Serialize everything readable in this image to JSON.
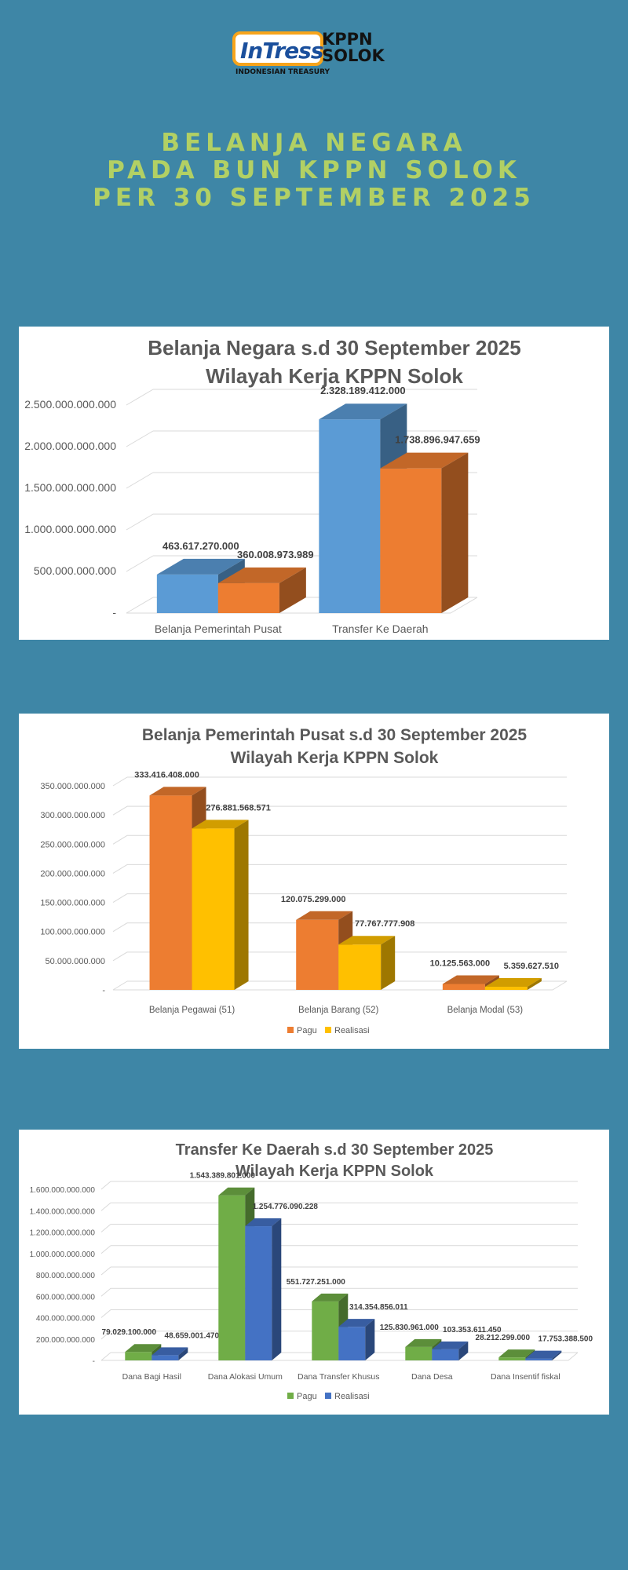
{
  "logo": {
    "name": "InTress",
    "org_line1": "KPPN",
    "org_line2": "SOLOK",
    "subtitle": "INDONESIAN TREASURY"
  },
  "header": {
    "line1": "BELANJA NEGARA",
    "line2": "PADA BUN KPPN SOLOK",
    "line3": "PER 30 SEPTEMBER 2025"
  },
  "colors": {
    "background": "#3e86a6",
    "title": "#b2d064"
  },
  "chart_data": [
    {
      "type": "bar",
      "title_line1": "Belanja Negara s.d 30 September 2025",
      "title_line2": "Wilayah Kerja KPPN Solok",
      "categories": [
        "Belanja Pemerintah Pusat",
        "Transfer Ke Daerah"
      ],
      "series": [
        {
          "values": [
            463617270000,
            2328189412000
          ],
          "labels": [
            "463.617.270.000",
            "2.328.189.412.000"
          ],
          "color": "#5b9bd5"
        },
        {
          "values": [
            360008973989,
            1738896947659
          ],
          "labels": [
            "360.008.973.989",
            "1.738.896.947.659"
          ],
          "color": "#ed7d31"
        }
      ],
      "yticks": [
        "-",
        "500.000.000.000",
        "1.000.000.000.000",
        "1.500.000.000.000",
        "2.000.000.000.000",
        "2.500.000.000.000"
      ],
      "ylim": [
        0,
        2500000000000
      ],
      "legend": []
    },
    {
      "type": "bar",
      "title_line1": "Belanja Pemerintah Pusat s.d 30 September 2025",
      "title_line2": "Wilayah Kerja KPPN Solok",
      "categories": [
        "Belanja Pegawai (51)",
        "Belanja Barang (52)",
        "Belanja Modal (53)"
      ],
      "series": [
        {
          "name": "Pagu",
          "values": [
            333416408000,
            120075299000,
            10125563000
          ],
          "labels": [
            "333.416.408.000",
            "120.075.299.000",
            "10.125.563.000"
          ],
          "color": "#ed7d31"
        },
        {
          "name": "Realisasi",
          "values": [
            276881568571,
            77767777908,
            5359627510
          ],
          "labels": [
            "276.881.568.571",
            "77.767.777.908",
            "5.359.627.510"
          ],
          "color": "#ffc000"
        }
      ],
      "yticks": [
        "-",
        "50.000.000.000",
        "100.000.000.000",
        "150.000.000.000",
        "200.000.000.000",
        "250.000.000.000",
        "300.000.000.000",
        "350.000.000.000"
      ],
      "ylim": [
        0,
        350000000000
      ],
      "legend": [
        "Pagu",
        "Realisasi"
      ]
    },
    {
      "type": "bar",
      "title_line1": "Transfer Ke Daerah s.d 30 September 2025",
      "title_line2": "Wilayah Kerja KPPN Solok",
      "categories": [
        "Dana Bagi Hasil",
        "Dana Alokasi Umum",
        "Dana Transfer Khusus",
        "Dana Desa",
        "Dana Insentif fiskal"
      ],
      "series": [
        {
          "name": "Pagu",
          "values": [
            79029100000,
            1543389801000,
            551727251000,
            125830961000,
            28212299000
          ],
          "labels": [
            "79.029.100.000",
            "1.543.389.801.000",
            "551.727.251.000",
            "125.830.961.000",
            "28.212.299.000"
          ],
          "color": "#70ad47"
        },
        {
          "name": "Realisasi",
          "values": [
            48659001470,
            1254776090228,
            314354856011,
            103353611450,
            17753388500
          ],
          "labels": [
            "48.659.001.470",
            "1.254.776.090.228",
            "314.354.856.011",
            "103.353.611.450",
            "17.753.388.500"
          ],
          "color": "#4472c4"
        }
      ],
      "yticks": [
        "-",
        "200.000.000.000",
        "400.000.000.000",
        "600.000.000.000",
        "800.000.000.000",
        "1.000.000.000.000",
        "1.200.000.000.000",
        "1.400.000.000.000",
        "1.600.000.000.000"
      ],
      "ylim": [
        0,
        1600000000000
      ],
      "legend": [
        "Pagu",
        "Realisasi"
      ]
    }
  ]
}
